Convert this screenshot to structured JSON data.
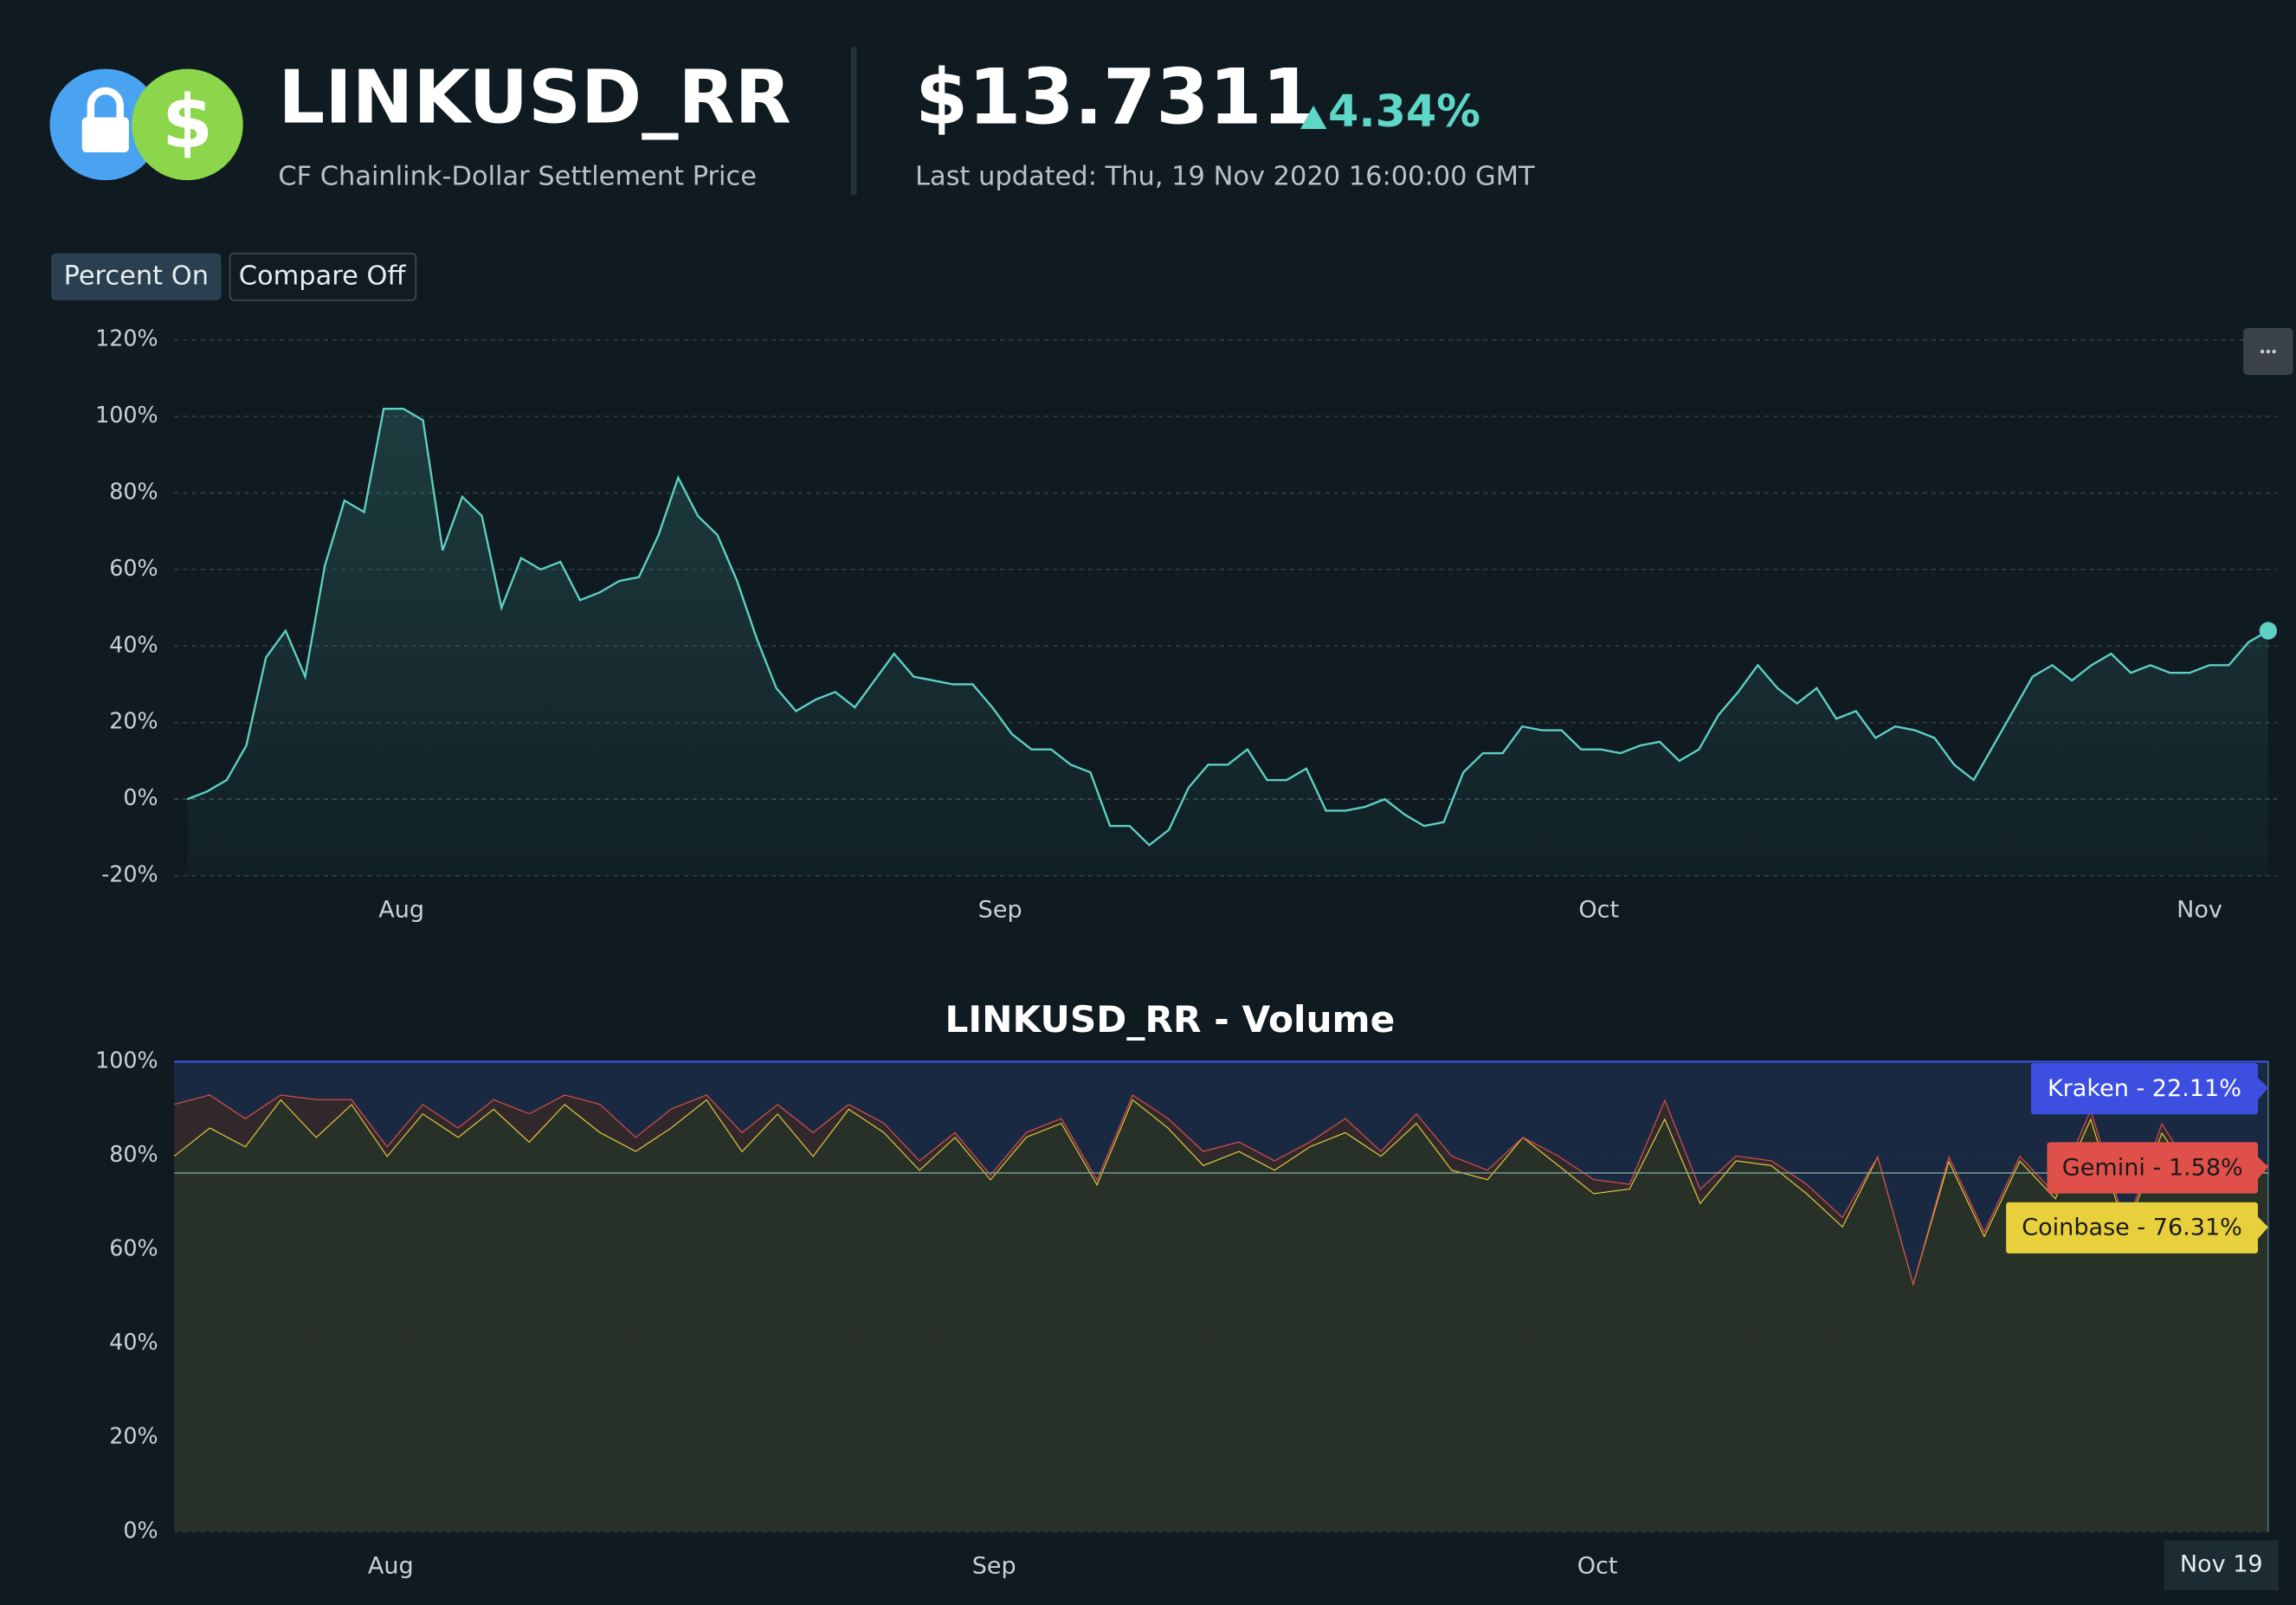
{
  "header": {
    "icon_symbol": "$",
    "title": "LINKUSD_RR",
    "subtitle": "CF Chainlink-Dollar Settlement Price",
    "price": "$13.7311",
    "change": "4.34%",
    "last_updated": "Last updated: Thu, 19 Nov 2020 16:00:00 GMT"
  },
  "buttons": [
    "Percent On",
    "Compare Off"
  ],
  "chart_data": [
    {
      "type": "area",
      "color": "#5ecfc4",
      "grid": true,
      "values": [
        0,
        2,
        5,
        14,
        37,
        44,
        32,
        61,
        78,
        75,
        102,
        102,
        99,
        65,
        79,
        74,
        50,
        63,
        60,
        62,
        52,
        54,
        57,
        58,
        69,
        84,
        74,
        69,
        57,
        42,
        29,
        23,
        26,
        28,
        24,
        31,
        38,
        32,
        31,
        30,
        30,
        24,
        17,
        13,
        13,
        9,
        7,
        -7,
        -7,
        -12,
        -8,
        3,
        9,
        9,
        13,
        5,
        5,
        8,
        -3,
        -3,
        -2,
        0,
        -4,
        -7,
        -6,
        7,
        12,
        12,
        19,
        18,
        18,
        13,
        13,
        12,
        14,
        15,
        10,
        13,
        22,
        28,
        35,
        29,
        25,
        29,
        21,
        23,
        16,
        19,
        18,
        16,
        9,
        5,
        14,
        23,
        32,
        35,
        31,
        35,
        38,
        33,
        35,
        33,
        33,
        35,
        35,
        41,
        44
      ],
      "xlim": [
        0,
        106
      ],
      "xticks": [
        {
          "value": 10.9,
          "label": "Aug"
        },
        {
          "value": 41.4,
          "label": "Sep"
        },
        {
          "value": 71.9,
          "label": "Oct"
        },
        {
          "value": 102.5,
          "label": "Nov"
        }
      ],
      "ylim": [
        -20,
        120
      ],
      "yticks": [
        {
          "value": -20,
          "label": "-20%"
        },
        {
          "value": 0,
          "label": "0%"
        },
        {
          "value": 20,
          "label": "20%"
        },
        {
          "value": 40,
          "label": "40%"
        },
        {
          "value": 60,
          "label": "60%"
        },
        {
          "value": 80,
          "label": "80%"
        },
        {
          "value": 100,
          "label": "100%"
        },
        {
          "value": 120,
          "label": "120%"
        }
      ]
    },
    {
      "type": "stacked_area",
      "title": "LINKUSD_RR - Volume",
      "grid": true,
      "cursor_label": "Nov 19",
      "xlim": [
        0,
        59
      ],
      "xticks": [
        {
          "value": 6.1,
          "label": "Aug"
        },
        {
          "value": 23.1,
          "label": "Sep"
        },
        {
          "value": 40.1,
          "label": "Oct"
        }
      ],
      "ylim": [
        0,
        100
      ],
      "yticks": [
        {
          "value": 0,
          "label": "0%"
        },
        {
          "value": 20,
          "label": "20%"
        },
        {
          "value": 40,
          "label": "40%"
        },
        {
          "value": 60,
          "label": "60%"
        },
        {
          "value": 80,
          "label": "80%"
        },
        {
          "value": 100,
          "label": "100%"
        }
      ],
      "series": [
        {
          "name": "Coinbase - 76.31%",
          "color": "#e8d03c",
          "values": [
            80,
            86,
            82,
            92,
            84,
            91,
            80,
            89,
            84,
            90,
            83,
            91,
            85,
            81,
            86,
            92,
            81,
            89,
            80,
            90,
            85,
            77,
            84,
            75,
            84,
            87,
            74,
            92,
            86,
            78,
            81,
            77,
            82,
            85,
            80,
            87,
            77,
            75,
            84,
            78,
            72,
            73,
            88,
            70,
            79,
            78,
            72,
            65,
            80,
            53,
            79,
            63,
            79,
            71,
            88,
            64,
            85,
            74,
            78,
            76.31
          ]
        },
        {
          "name": "Gemini - 1.58%",
          "color": "#e0504b",
          "values": [
            11,
            7,
            6,
            1,
            8,
            1,
            2,
            2,
            2,
            2,
            6,
            2,
            6,
            3,
            4,
            1,
            4,
            2,
            5,
            1,
            2,
            2,
            1,
            1,
            1,
            1,
            1,
            1,
            2,
            3,
            2,
            2,
            1,
            3,
            1,
            2,
            3,
            2,
            0,
            2,
            3,
            1,
            4,
            3,
            1,
            1,
            2,
            2,
            0,
            0,
            1,
            1,
            1,
            1,
            2,
            1,
            2,
            1,
            3,
            1.58
          ]
        },
        {
          "name": "Kraken - 22.11%",
          "color": "#3d4fe0",
          "values": [
            9,
            7,
            12,
            7,
            8,
            8,
            18,
            9,
            14,
            8,
            11,
            7,
            9,
            16,
            10,
            7,
            15,
            9,
            15,
            9,
            13,
            21,
            15,
            24,
            15,
            12,
            25,
            7,
            12,
            19,
            17,
            21,
            17,
            12,
            19,
            11,
            20,
            23,
            16,
            20,
            25,
            26,
            8,
            27,
            20,
            21,
            26,
            33,
            20,
            47,
            20,
            36,
            20,
            28,
            10,
            35,
            13,
            25,
            19,
            22.11
          ]
        }
      ]
    }
  ]
}
